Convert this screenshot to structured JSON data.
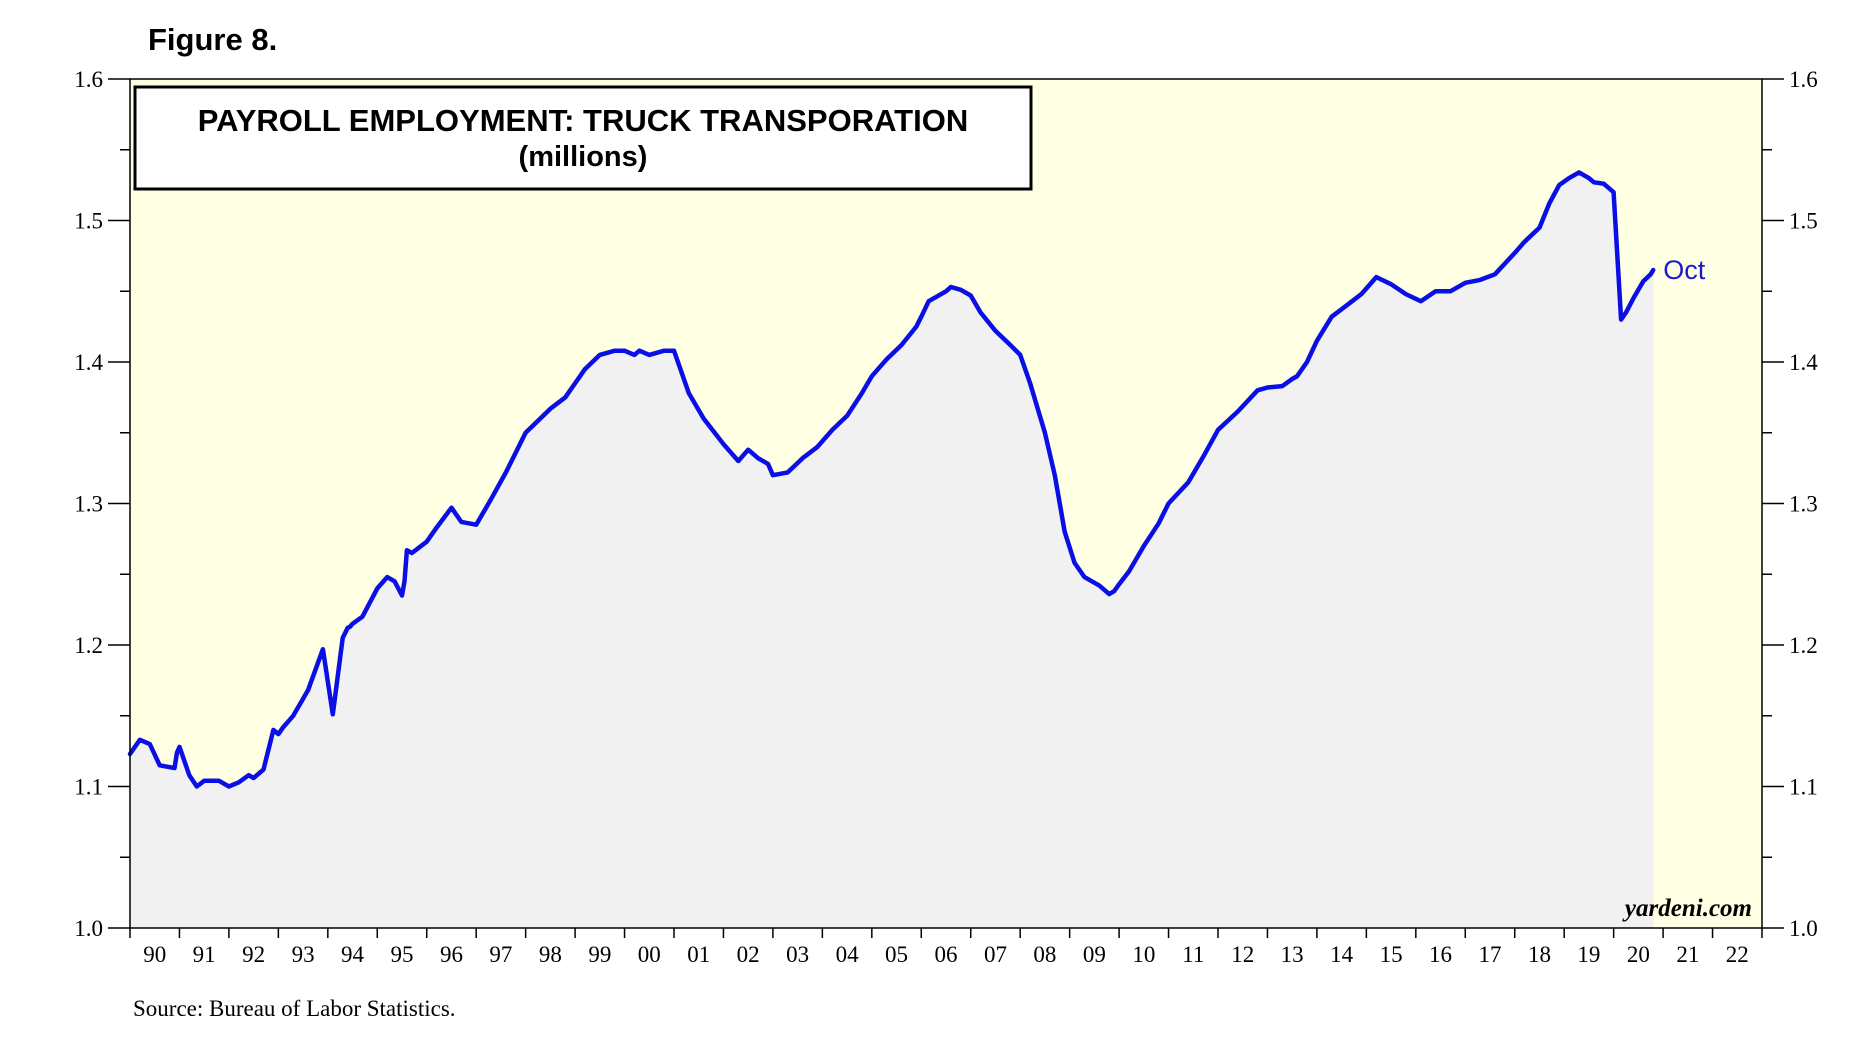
{
  "figure_label": "Figure 8.",
  "source": "Source: Bureau of Labor Statistics.",
  "watermark": "yardeni.com",
  "colors": {
    "plot_bg": "#ffffe3",
    "area_fill": "#f1f1f1",
    "line": "#0a0fe6",
    "label": "#1a1ad0"
  },
  "chart_data": {
    "type": "line",
    "title": "PAYROLL EMPLOYMENT: TRUCK TRANSPORATION",
    "subtitle": "(millions)",
    "xlabel": "",
    "ylabel": "",
    "ylim": [
      1.0,
      1.6
    ],
    "xlim": [
      1990,
      2023
    ],
    "y_ticks": [
      "1.0",
      "1.1",
      "1.2",
      "1.3",
      "1.4",
      "1.5",
      "1.6"
    ],
    "x_ticks": [
      "90",
      "91",
      "92",
      "93",
      "94",
      "95",
      "96",
      "97",
      "98",
      "99",
      "00",
      "01",
      "02",
      "03",
      "04",
      "05",
      "06",
      "07",
      "08",
      "09",
      "10",
      "11",
      "12",
      "13",
      "14",
      "15",
      "16",
      "17",
      "18",
      "19",
      "20",
      "21",
      "22"
    ],
    "grid": false,
    "end_label": "Oct",
    "series": [
      {
        "x": [
          1990.0,
          1990.1,
          1990.2,
          1990.4,
          1990.6,
          1990.9,
          1990.95,
          1991.0,
          1991.2,
          1991.35,
          1991.5,
          1991.8,
          1992.0,
          1992.2,
          1992.4,
          1992.5,
          1992.7,
          1992.9,
          1993.0,
          1993.1,
          1993.3,
          1993.6,
          1993.9,
          1994.1,
          1994.3,
          1994.4,
          1994.45,
          1994.5,
          1994.7,
          1995.0,
          1995.2,
          1995.35,
          1995.5,
          1995.55,
          1995.6,
          1995.7,
          1996.0,
          1996.2,
          1996.5,
          1996.7,
          1997.0,
          1997.3,
          1997.6,
          1998.0,
          1998.5,
          1998.8,
          1999.2,
          1999.5,
          1999.8,
          2000.0,
          2000.2,
          2000.3,
          2000.5,
          2000.8,
          2001.0,
          2001.3,
          2001.6,
          2002.0,
          2002.3,
          2002.5,
          2002.7,
          2002.9,
          2003.0,
          2003.3,
          2003.6,
          2003.9,
          2004.2,
          2004.5,
          2004.8,
          2005.0,
          2005.3,
          2005.6,
          2005.9,
          2006.0,
          2006.15,
          2006.5,
          2006.6,
          2006.8,
          2007.0,
          2007.2,
          2007.5,
          2007.8,
          2008.0,
          2008.2,
          2008.5,
          2008.7,
          2008.9,
          2009.1,
          2009.3,
          2009.6,
          2009.8,
          2009.9,
          2010.0,
          2010.2,
          2010.5,
          2010.8,
          2011.0,
          2011.4,
          2011.7,
          2012.0,
          2012.4,
          2012.8,
          2013.0,
          2013.3,
          2013.5,
          2013.6,
          2013.8,
          2014.0,
          2014.3,
          2014.6,
          2014.9,
          2015.2,
          2015.5,
          2015.8,
          2016.1,
          2016.4,
          2016.7,
          2017.0,
          2017.3,
          2017.6,
          2018.0,
          2018.2,
          2018.5,
          2018.7,
          2018.9,
          2019.1,
          2019.3,
          2019.5,
          2019.6,
          2019.8,
          2020.0,
          2020.15,
          2020.25,
          2020.4,
          2020.6,
          2020.75,
          2020.8
        ],
        "y": [
          1.123,
          1.128,
          1.133,
          1.13,
          1.115,
          1.113,
          1.124,
          1.128,
          1.108,
          1.1,
          1.104,
          1.104,
          1.1,
          1.103,
          1.108,
          1.106,
          1.112,
          1.14,
          1.137,
          1.142,
          1.15,
          1.168,
          1.197,
          1.151,
          1.205,
          1.212,
          1.213,
          1.215,
          1.22,
          1.24,
          1.248,
          1.245,
          1.235,
          1.245,
          1.267,
          1.265,
          1.273,
          1.283,
          1.297,
          1.287,
          1.285,
          1.303,
          1.322,
          1.35,
          1.367,
          1.375,
          1.395,
          1.405,
          1.408,
          1.408,
          1.405,
          1.408,
          1.405,
          1.408,
          1.408,
          1.378,
          1.36,
          1.342,
          1.33,
          1.338,
          1.332,
          1.328,
          1.32,
          1.322,
          1.332,
          1.34,
          1.352,
          1.362,
          1.378,
          1.39,
          1.402,
          1.412,
          1.425,
          1.432,
          1.443,
          1.45,
          1.453,
          1.451,
          1.447,
          1.435,
          1.422,
          1.412,
          1.405,
          1.385,
          1.35,
          1.32,
          1.28,
          1.258,
          1.248,
          1.242,
          1.236,
          1.238,
          1.243,
          1.252,
          1.27,
          1.286,
          1.3,
          1.315,
          1.333,
          1.352,
          1.365,
          1.38,
          1.382,
          1.383,
          1.388,
          1.39,
          1.4,
          1.415,
          1.432,
          1.44,
          1.448,
          1.46,
          1.455,
          1.448,
          1.443,
          1.45,
          1.45,
          1.456,
          1.458,
          1.462,
          1.477,
          1.485,
          1.495,
          1.512,
          1.525,
          1.53,
          1.534,
          1.53,
          1.527,
          1.526,
          1.52,
          1.43,
          1.435,
          1.445,
          1.457,
          1.462,
          1.465
        ]
      }
    ]
  }
}
